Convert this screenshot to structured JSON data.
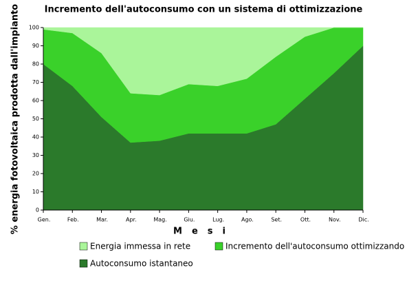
{
  "chart_data": {
    "type": "stacked_area",
    "title": "Incremento dell'autoconsumo con un sistema di ottimizzazione",
    "x_label": "Mesi",
    "y_label": "% energia fotovoltaica prodotta dall'impianto",
    "categories": [
      "Gen.",
      "Feb.",
      "Mar.",
      "Apr.",
      "Mag.",
      "Giu.",
      "Lug.",
      "Ago.",
      "Set.",
      "Ott.",
      "Nov.",
      "Dic."
    ],
    "series": [
      {
        "name": "Autoconsumo istantaneo",
        "color": "#2b7a2b",
        "values": [
          80,
          68,
          51,
          37,
          38,
          42,
          42,
          42,
          47,
          61,
          75,
          90
        ]
      },
      {
        "name": "Incremento dell'autoconsumo ottimizzando l'impianto all'utilizzatore",
        "color": "#3ad12a",
        "values": [
          19,
          29,
          35,
          27,
          25,
          27,
          26,
          30,
          37,
          34,
          25,
          10
        ]
      },
      {
        "name": "Energia immessa in rete",
        "color": "#aaf59a",
        "values": [
          1,
          3,
          14,
          36,
          37,
          31,
          32,
          28,
          16,
          5,
          0,
          0
        ]
      }
    ],
    "ylim": [
      0,
      100
    ],
    "yticks": [
      0,
      10,
      20,
      30,
      40,
      50,
      60,
      70,
      80,
      90,
      100
    ]
  }
}
